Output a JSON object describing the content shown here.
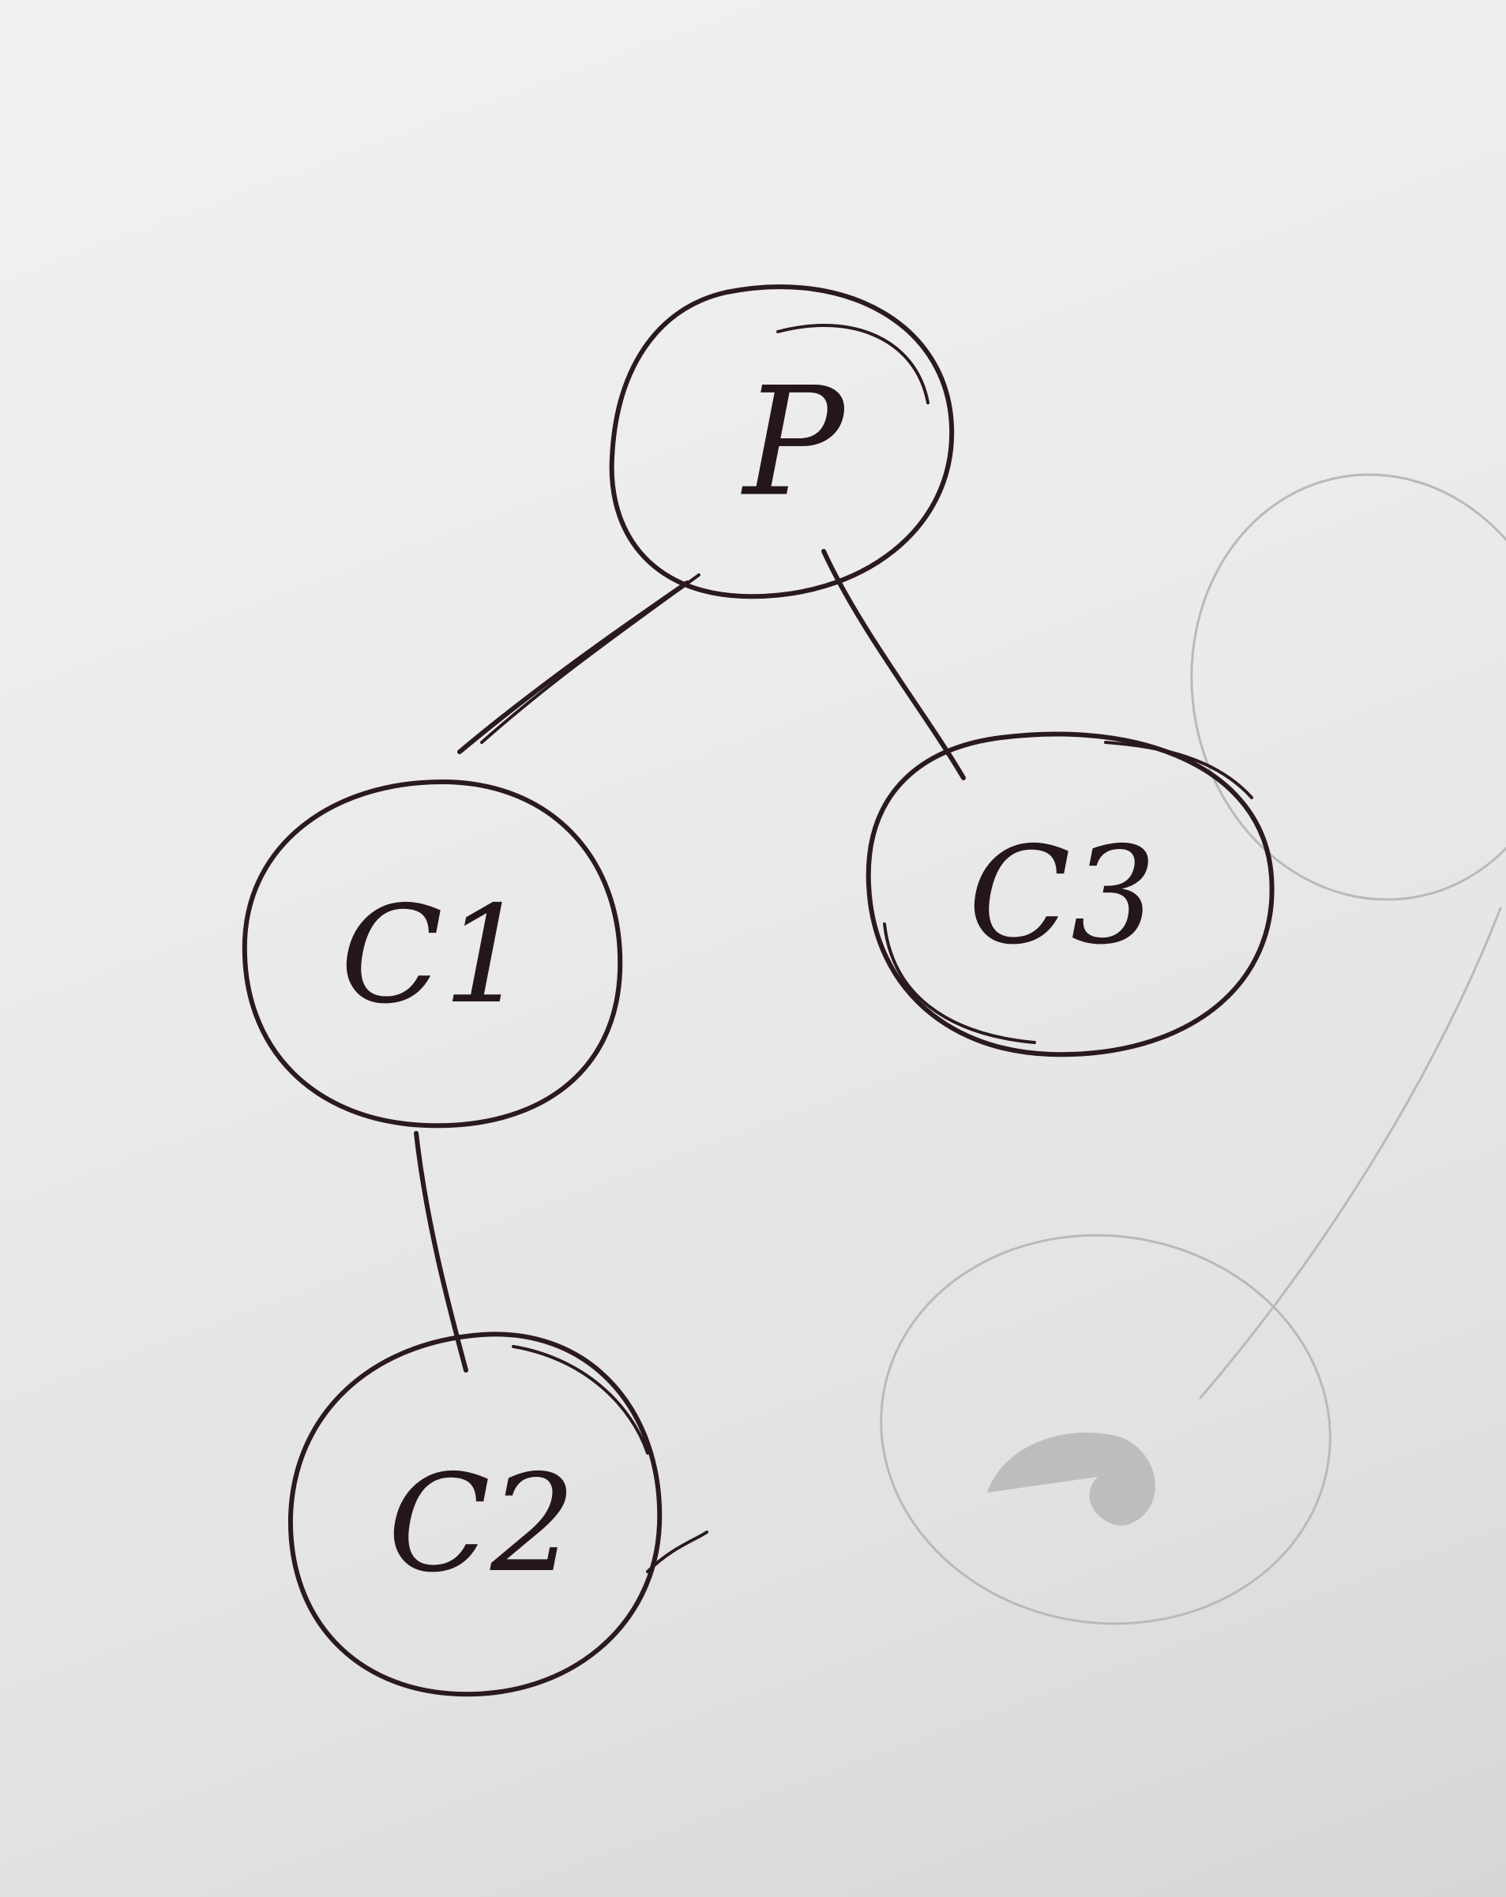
{
  "diagram": {
    "type": "tree",
    "ink_color": "#2a1a1e",
    "paper_color": "#efefed",
    "nodes": [
      {
        "id": "p",
        "label": "P",
        "name": "node-p"
      },
      {
        "id": "c1",
        "label": "C1",
        "name": "node-c1"
      },
      {
        "id": "c3",
        "label": "C3",
        "name": "node-c3"
      },
      {
        "id": "c2",
        "label": "C2",
        "name": "node-c2"
      }
    ],
    "edges": [
      {
        "from": "p",
        "to": "c1"
      },
      {
        "from": "p",
        "to": "c3"
      },
      {
        "from": "c1",
        "to": "c2"
      }
    ]
  }
}
